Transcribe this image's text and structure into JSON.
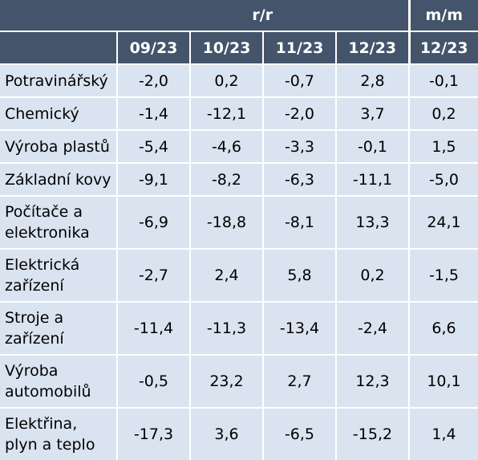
{
  "header": {
    "group_yy": "r/r",
    "group_mm": "m/m",
    "periods": [
      "09/23",
      "10/23",
      "11/23",
      "12/23"
    ],
    "mm_period": "12/23"
  },
  "rows": [
    {
      "label": "Potravinářský",
      "yy": [
        "-2,0",
        "0,2",
        "-0,7",
        "2,8"
      ],
      "mm": "-0,1"
    },
    {
      "label": "Chemický",
      "yy": [
        "-1,4",
        "-12,1",
        "-2,0",
        "3,7"
      ],
      "mm": "0,2"
    },
    {
      "label": "Výroba plastů",
      "yy": [
        "-5,4",
        "-4,6",
        "-3,3",
        "-0,1"
      ],
      "mm": "1,5"
    },
    {
      "label": "Základní kovy",
      "yy": [
        "-9,1",
        "-8,2",
        "-6,3",
        "-11,1"
      ],
      "mm": "-5,0"
    },
    {
      "label_lines": [
        "Počítače a",
        "elektronika"
      ],
      "yy": [
        "-6,9",
        "-18,8",
        "-8,1",
        "13,3"
      ],
      "mm": "24,1"
    },
    {
      "label_lines": [
        "Elektrická",
        "zařízení"
      ],
      "yy": [
        "-2,7",
        "2,4",
        "5,8",
        "0,2"
      ],
      "mm": "-1,5"
    },
    {
      "label_lines": [
        "Stroje a",
        "zařízení"
      ],
      "yy": [
        "-11,4",
        "-11,3",
        "-13,4",
        "-2,4"
      ],
      "mm": "6,6"
    },
    {
      "label_lines": [
        "Výroba",
        "automobilů"
      ],
      "yy": [
        "-0,5",
        "23,2",
        "2,7",
        "12,3"
      ],
      "mm": "10,1"
    },
    {
      "label_lines": [
        "Elektřina,",
        "plyn a teplo"
      ],
      "yy": [
        "-17,3",
        "3,6",
        "-6,5",
        "-15,2"
      ],
      "mm": "1,4"
    }
  ],
  "colors": {
    "header_bg": "#44546a",
    "header_text": "#ffffff",
    "body_bg": "#dae3f0",
    "body_text": "#000000"
  }
}
